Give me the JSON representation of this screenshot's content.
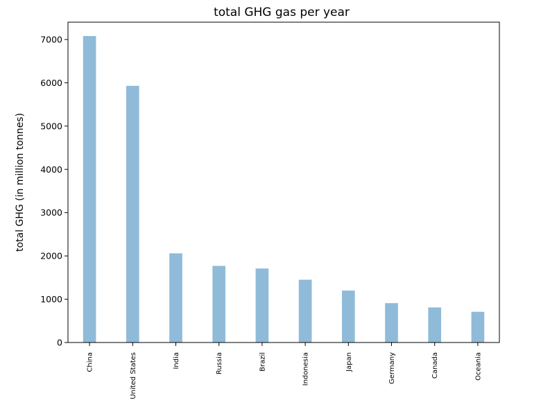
{
  "chart_data": {
    "type": "bar",
    "title": "total GHG gas per year",
    "xlabel": "",
    "ylabel": "total GHG (in million tonnes)",
    "categories": [
      "China",
      "United States",
      "India",
      "Russia",
      "Brazil",
      "Indonesia",
      "Japan",
      "Germany",
      "Canada",
      "Oceania"
    ],
    "values": [
      7080,
      5930,
      2060,
      1770,
      1710,
      1450,
      1200,
      910,
      810,
      710
    ],
    "yticks": [
      0,
      1000,
      2000,
      3000,
      4000,
      5000,
      6000,
      7000
    ],
    "ylim": [
      0,
      7400
    ],
    "bar_color": "#1f77b4",
    "bar_opacity": 0.5,
    "grid": false,
    "legend": "none"
  }
}
